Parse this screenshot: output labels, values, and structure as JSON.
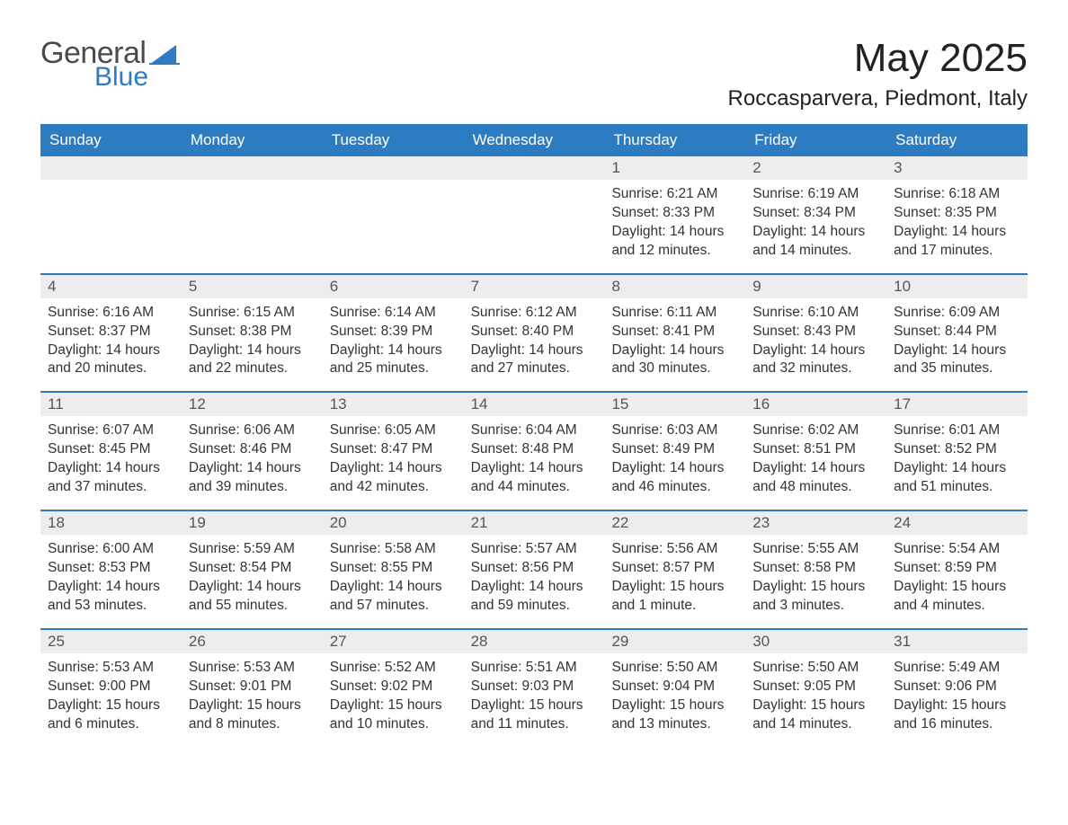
{
  "logo": {
    "line1": "General",
    "line2": "Blue",
    "brand_color": "#2d7cc1",
    "text_color": "#4a4a4a"
  },
  "title": "May 2025",
  "location": "Roccasparvera, Piedmont, Italy",
  "colors": {
    "header_bg": "#2d7cc1",
    "header_text": "#ffffff",
    "band_bg": "#ededed",
    "band_text": "#555555",
    "body_text": "#333333",
    "divider": "#2d7cc1",
    "page_bg": "#ffffff"
  },
  "day_names": [
    "Sunday",
    "Monday",
    "Tuesday",
    "Wednesday",
    "Thursday",
    "Friday",
    "Saturday"
  ],
  "weeks": [
    [
      null,
      null,
      null,
      null,
      {
        "n": "1",
        "sr": "Sunrise: 6:21 AM",
        "ss": "Sunset: 8:33 PM",
        "d1": "Daylight: 14 hours",
        "d2": "and 12 minutes."
      },
      {
        "n": "2",
        "sr": "Sunrise: 6:19 AM",
        "ss": "Sunset: 8:34 PM",
        "d1": "Daylight: 14 hours",
        "d2": "and 14 minutes."
      },
      {
        "n": "3",
        "sr": "Sunrise: 6:18 AM",
        "ss": "Sunset: 8:35 PM",
        "d1": "Daylight: 14 hours",
        "d2": "and 17 minutes."
      }
    ],
    [
      {
        "n": "4",
        "sr": "Sunrise: 6:16 AM",
        "ss": "Sunset: 8:37 PM",
        "d1": "Daylight: 14 hours",
        "d2": "and 20 minutes."
      },
      {
        "n": "5",
        "sr": "Sunrise: 6:15 AM",
        "ss": "Sunset: 8:38 PM",
        "d1": "Daylight: 14 hours",
        "d2": "and 22 minutes."
      },
      {
        "n": "6",
        "sr": "Sunrise: 6:14 AM",
        "ss": "Sunset: 8:39 PM",
        "d1": "Daylight: 14 hours",
        "d2": "and 25 minutes."
      },
      {
        "n": "7",
        "sr": "Sunrise: 6:12 AM",
        "ss": "Sunset: 8:40 PM",
        "d1": "Daylight: 14 hours",
        "d2": "and 27 minutes."
      },
      {
        "n": "8",
        "sr": "Sunrise: 6:11 AM",
        "ss": "Sunset: 8:41 PM",
        "d1": "Daylight: 14 hours",
        "d2": "and 30 minutes."
      },
      {
        "n": "9",
        "sr": "Sunrise: 6:10 AM",
        "ss": "Sunset: 8:43 PM",
        "d1": "Daylight: 14 hours",
        "d2": "and 32 minutes."
      },
      {
        "n": "10",
        "sr": "Sunrise: 6:09 AM",
        "ss": "Sunset: 8:44 PM",
        "d1": "Daylight: 14 hours",
        "d2": "and 35 minutes."
      }
    ],
    [
      {
        "n": "11",
        "sr": "Sunrise: 6:07 AM",
        "ss": "Sunset: 8:45 PM",
        "d1": "Daylight: 14 hours",
        "d2": "and 37 minutes."
      },
      {
        "n": "12",
        "sr": "Sunrise: 6:06 AM",
        "ss": "Sunset: 8:46 PM",
        "d1": "Daylight: 14 hours",
        "d2": "and 39 minutes."
      },
      {
        "n": "13",
        "sr": "Sunrise: 6:05 AM",
        "ss": "Sunset: 8:47 PM",
        "d1": "Daylight: 14 hours",
        "d2": "and 42 minutes."
      },
      {
        "n": "14",
        "sr": "Sunrise: 6:04 AM",
        "ss": "Sunset: 8:48 PM",
        "d1": "Daylight: 14 hours",
        "d2": "and 44 minutes."
      },
      {
        "n": "15",
        "sr": "Sunrise: 6:03 AM",
        "ss": "Sunset: 8:49 PM",
        "d1": "Daylight: 14 hours",
        "d2": "and 46 minutes."
      },
      {
        "n": "16",
        "sr": "Sunrise: 6:02 AM",
        "ss": "Sunset: 8:51 PM",
        "d1": "Daylight: 14 hours",
        "d2": "and 48 minutes."
      },
      {
        "n": "17",
        "sr": "Sunrise: 6:01 AM",
        "ss": "Sunset: 8:52 PM",
        "d1": "Daylight: 14 hours",
        "d2": "and 51 minutes."
      }
    ],
    [
      {
        "n": "18",
        "sr": "Sunrise: 6:00 AM",
        "ss": "Sunset: 8:53 PM",
        "d1": "Daylight: 14 hours",
        "d2": "and 53 minutes."
      },
      {
        "n": "19",
        "sr": "Sunrise: 5:59 AM",
        "ss": "Sunset: 8:54 PM",
        "d1": "Daylight: 14 hours",
        "d2": "and 55 minutes."
      },
      {
        "n": "20",
        "sr": "Sunrise: 5:58 AM",
        "ss": "Sunset: 8:55 PM",
        "d1": "Daylight: 14 hours",
        "d2": "and 57 minutes."
      },
      {
        "n": "21",
        "sr": "Sunrise: 5:57 AM",
        "ss": "Sunset: 8:56 PM",
        "d1": "Daylight: 14 hours",
        "d2": "and 59 minutes."
      },
      {
        "n": "22",
        "sr": "Sunrise: 5:56 AM",
        "ss": "Sunset: 8:57 PM",
        "d1": "Daylight: 15 hours",
        "d2": "and 1 minute."
      },
      {
        "n": "23",
        "sr": "Sunrise: 5:55 AM",
        "ss": "Sunset: 8:58 PM",
        "d1": "Daylight: 15 hours",
        "d2": "and 3 minutes."
      },
      {
        "n": "24",
        "sr": "Sunrise: 5:54 AM",
        "ss": "Sunset: 8:59 PM",
        "d1": "Daylight: 15 hours",
        "d2": "and 4 minutes."
      }
    ],
    [
      {
        "n": "25",
        "sr": "Sunrise: 5:53 AM",
        "ss": "Sunset: 9:00 PM",
        "d1": "Daylight: 15 hours",
        "d2": "and 6 minutes."
      },
      {
        "n": "26",
        "sr": "Sunrise: 5:53 AM",
        "ss": "Sunset: 9:01 PM",
        "d1": "Daylight: 15 hours",
        "d2": "and 8 minutes."
      },
      {
        "n": "27",
        "sr": "Sunrise: 5:52 AM",
        "ss": "Sunset: 9:02 PM",
        "d1": "Daylight: 15 hours",
        "d2": "and 10 minutes."
      },
      {
        "n": "28",
        "sr": "Sunrise: 5:51 AM",
        "ss": "Sunset: 9:03 PM",
        "d1": "Daylight: 15 hours",
        "d2": "and 11 minutes."
      },
      {
        "n": "29",
        "sr": "Sunrise: 5:50 AM",
        "ss": "Sunset: 9:04 PM",
        "d1": "Daylight: 15 hours",
        "d2": "and 13 minutes."
      },
      {
        "n": "30",
        "sr": "Sunrise: 5:50 AM",
        "ss": "Sunset: 9:05 PM",
        "d1": "Daylight: 15 hours",
        "d2": "and 14 minutes."
      },
      {
        "n": "31",
        "sr": "Sunrise: 5:49 AM",
        "ss": "Sunset: 9:06 PM",
        "d1": "Daylight: 15 hours",
        "d2": "and 16 minutes."
      }
    ]
  ]
}
